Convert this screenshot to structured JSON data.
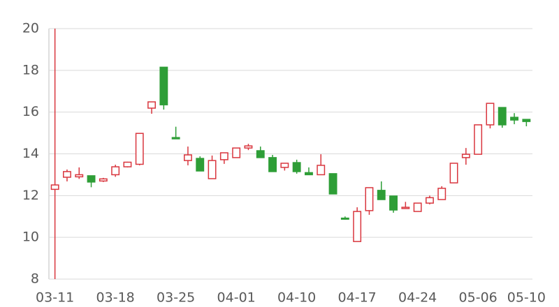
{
  "chart_data": {
    "type": "candlestick",
    "categories": [
      "03-11",
      null,
      null,
      null,
      null,
      "03-18",
      null,
      null,
      null,
      null,
      "03-25",
      null,
      null,
      null,
      null,
      "04-01",
      null,
      null,
      null,
      null,
      "04-10",
      null,
      null,
      null,
      null,
      "04-17",
      null,
      null,
      null,
      null,
      "04-24",
      null,
      null,
      null,
      null,
      "05-06",
      null,
      null,
      null,
      "05-10"
    ],
    "open": [
      12.3,
      12.88,
      12.9,
      12.95,
      12.7,
      13.0,
      13.38,
      13.5,
      16.19,
      18.15,
      14.78,
      13.68,
      13.78,
      12.81,
      13.72,
      13.82,
      14.28,
      14.15,
      13.82,
      13.35,
      13.58,
      13.1,
      13.0,
      13.05,
      10.92,
      9.8,
      11.28,
      12.25,
      11.98,
      11.38,
      11.24,
      11.64,
      11.81,
      12.61,
      13.82,
      13.98,
      15.39,
      16.22,
      15.75,
      15.65
    ],
    "high": [
      20,
      13.25,
      13.35,
      12.95,
      12.85,
      13.48,
      13.62,
      14.98,
      16.49,
      18.15,
      15.3,
      14.35,
      13.88,
      13.92,
      14.05,
      14.3,
      14.48,
      14.35,
      13.95,
      13.55,
      13.72,
      13.35,
      13.98,
      13.05,
      11.0,
      11.44,
      12.38,
      12.68,
      11.98,
      11.7,
      11.64,
      12.0,
      12.45,
      13.55,
      14.28,
      15.39,
      16.42,
      16.22,
      15.95,
      15.65
    ],
    "low": [
      8,
      12.68,
      12.8,
      12.4,
      12.65,
      12.9,
      13.35,
      13.45,
      15.92,
      16.12,
      14.72,
      13.45,
      13.18,
      12.81,
      13.52,
      13.82,
      14.18,
      13.82,
      13.15,
      13.2,
      13.05,
      13.0,
      13.0,
      12.08,
      10.85,
      9.8,
      11.08,
      11.81,
      11.18,
      11.38,
      11.24,
      11.58,
      11.81,
      12.61,
      13.48,
      13.98,
      15.22,
      15.25,
      15.42,
      15.32
    ],
    "close": [
      12.51,
      13.15,
      13.0,
      12.65,
      12.8,
      13.38,
      13.6,
      14.98,
      16.49,
      16.35,
      14.72,
      13.95,
      13.18,
      13.68,
      14.05,
      14.28,
      14.38,
      13.82,
      13.15,
      13.55,
      13.15,
      13.0,
      13.45,
      12.08,
      10.88,
      11.24,
      12.38,
      11.81,
      11.31,
      11.44,
      11.64,
      11.9,
      12.35,
      13.55,
      13.98,
      15.39,
      16.42,
      15.39,
      15.62,
      15.55
    ],
    "up_color": "#d9363e",
    "down_color": "#2e9e37",
    "ylim": [
      8,
      20
    ],
    "yticks": [
      8,
      10,
      12,
      14,
      16,
      18,
      20
    ],
    "grid": true
  }
}
